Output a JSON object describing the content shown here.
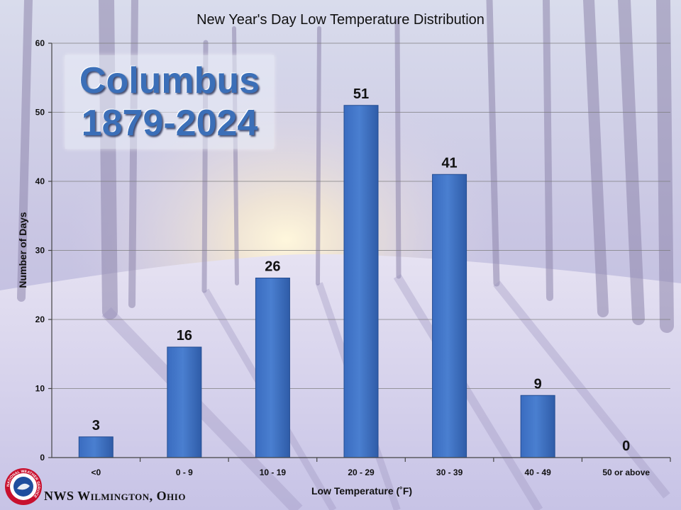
{
  "chart_data": {
    "type": "bar",
    "title": "New Year's Day Low Temperature Distribution",
    "xlabel": "Low Temperature (˚F)",
    "ylabel": "Number of Days",
    "categories": [
      "<0",
      "0 - 9",
      "10 - 19",
      "20 - 29",
      "30 - 39",
      "40 - 49",
      "50 or above"
    ],
    "values": [
      3,
      16,
      26,
      51,
      41,
      9,
      0
    ],
    "ylim": [
      0,
      60
    ],
    "yticks": [
      0,
      10,
      20,
      30,
      40,
      50,
      60
    ],
    "grid": true,
    "bar_color": "#4a7fd0",
    "data_labels": true
  },
  "callout": {
    "place": "Columbus",
    "years": "1879-2024"
  },
  "footer": {
    "office": "NWS Wilmington, Ohio"
  },
  "logo": {
    "icon": "nws-logo-icon",
    "text": "NATIONAL WEATHER SERVICE"
  }
}
